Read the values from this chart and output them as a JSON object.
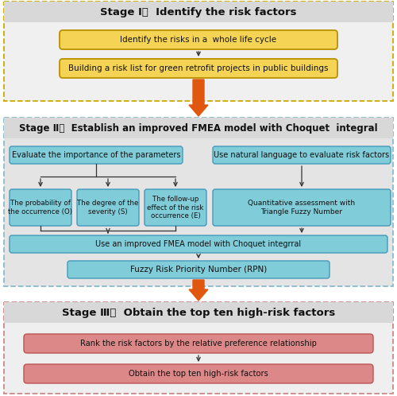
{
  "stage1_title": "Stage Ⅰ：  Identify the risk factors",
  "stage2_title": "Stage Ⅱ：  Establish an improved FMEA model with Choquet  integral",
  "stage3_title": "Stage Ⅲ：  Obtain the top ten high-risk factors",
  "stage1_bg": "#f0f0f0",
  "stage2_bg": "#e4e4e4",
  "stage3_bg": "#efefef",
  "stage1_border_color": "#ccaa00",
  "stage2_border_color": "#88bbcc",
  "stage3_border_color": "#cc8888",
  "yellow_box_fill": "#f5d455",
  "yellow_box_edge": "#b89000",
  "blue_box_fill": "#80ccd8",
  "blue_box_edge": "#4499bb",
  "red_box_fill": "#dd8888",
  "red_box_edge": "#bb5555",
  "header_bg": "#d8d8d8",
  "arrow_orange": "#e05810",
  "arrow_dark": "#333333",
  "box1_text": "Identify the risks in a  whole life cycle",
  "box2_text": "Building a risk list for green retrofit projects in public buildings",
  "box3_text": "Evaluate the importance of the parameters",
  "box4_text": "Use natural language to evaluate risk factors",
  "box5_text": "The probability of\nthe occurrence (O)",
  "box6_text": "The degree of the\nseverity (S)",
  "box7_text": "The follow-up\neffect of the risk\noccurrence (E)",
  "box8_text": "Quantitative assessment with\nTriangle Fuzzy Number",
  "box9_text": "Use an improved FMEA model with Choquet integrral",
  "box10_text": "Fuzzy Risk Priority Number (RPN)",
  "box11_text": "Rank the risk factors by the relative preference relationship",
  "box12_text": "Obtain the top ten high-risk factors"
}
